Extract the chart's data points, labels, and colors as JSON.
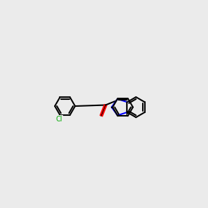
{
  "background_color": "#ebebeb",
  "bond_color": "#000000",
  "N_color": "#0000ff",
  "O_color": "#ff0000",
  "Cl_color": "#00aa00",
  "CH3_color": "#000000",
  "H_color": "#888888",
  "lw": 1.5,
  "lw_double": 1.5
}
